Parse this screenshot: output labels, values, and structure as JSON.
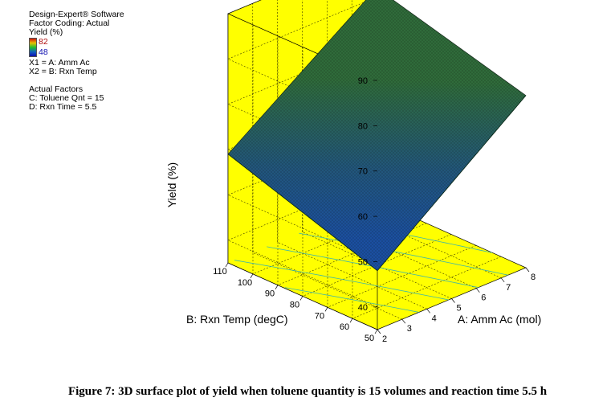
{
  "header": {
    "software": "Design-Expert® Software",
    "coding": "Factor Coding: Actual",
    "response": "Yield (%)",
    "colorbar_max": "82",
    "colorbar_min": "48",
    "x1": "X1 = A: Amm Ac",
    "x2": "X2 = B: Rxn Temp",
    "actual_factors_title": "Actual Factors",
    "factor_c": "C: Toluene Qnt = 15",
    "factor_d": "D: Rxn Time = 5.5"
  },
  "chart_data": {
    "type": "surface",
    "title": "",
    "xlabel": "A: Amm Ac (mol)",
    "ylabel": "B: Rxn Temp (degC)",
    "zlabel": "Yield (%)",
    "x_ticks": [
      "2",
      "3",
      "4",
      "5",
      "6",
      "7",
      "8"
    ],
    "y_ticks": [
      "50",
      "60",
      "70",
      "80",
      "90",
      "100",
      "110"
    ],
    "z_ticks": [
      "40",
      "50",
      "60",
      "70",
      "80",
      "90"
    ],
    "xlim": [
      2,
      8
    ],
    "ylim": [
      50,
      110
    ],
    "zlim": [
      35,
      90
    ],
    "corners": [
      {
        "x": 2,
        "y": 50,
        "z": 48
      },
      {
        "x": 8,
        "y": 50,
        "z": 73
      },
      {
        "x": 8,
        "y": 110,
        "z": 82
      },
      {
        "x": 2,
        "y": 110,
        "z": 59
      }
    ],
    "colors": {
      "walls": "#ffff00",
      "surface_high": "#2f6b3a",
      "surface_low": "#1b4fa0"
    }
  },
  "caption": "Figure 7: 3D surface plot of yield when toluene quantity is 15 volumes and reaction time 5.5 h"
}
